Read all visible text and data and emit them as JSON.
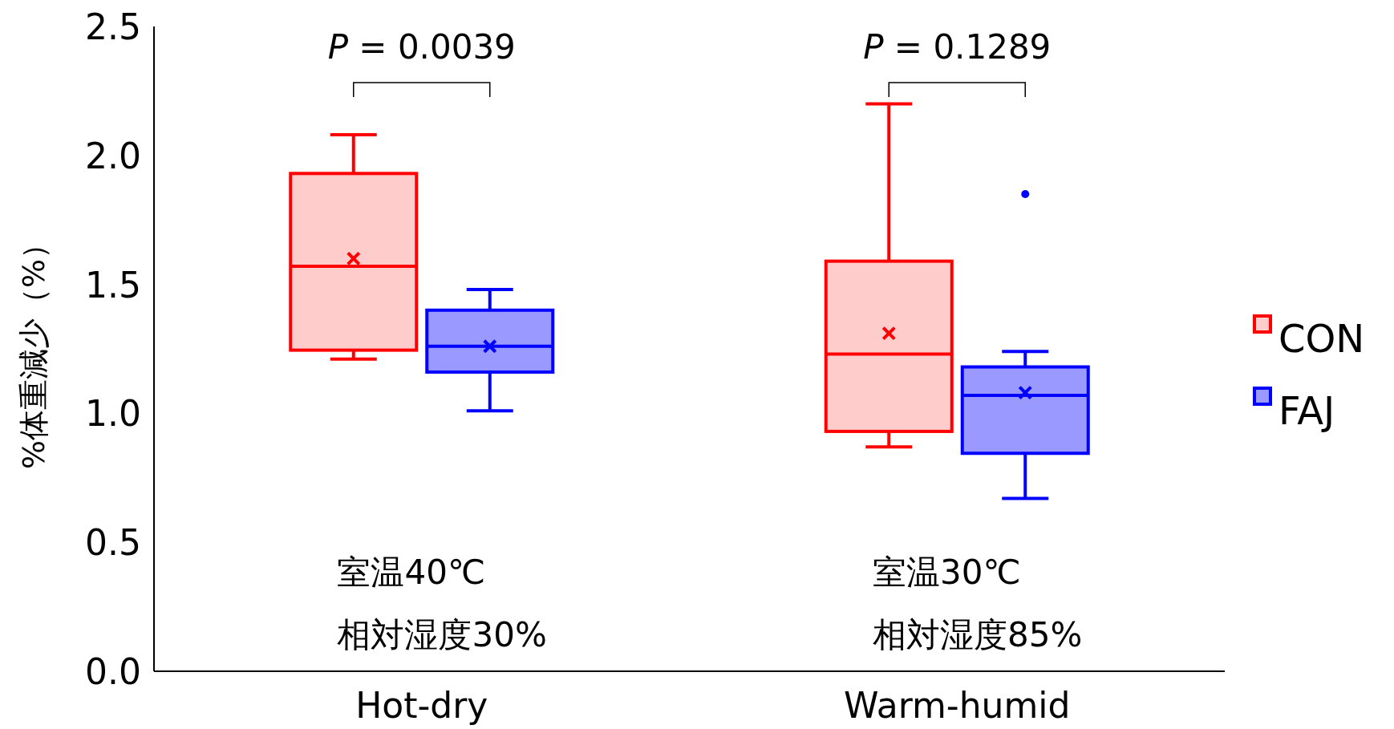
{
  "chart_data": {
    "type": "box",
    "categories": [
      "Hot-dry",
      "Warm-humid"
    ],
    "ylabel": "%体重減少（%）",
    "ylim": [
      0,
      2.5
    ],
    "yticks": [
      {
        "value": 0,
        "label": "0.0"
      },
      {
        "value": 0.5,
        "label": "0.5"
      },
      {
        "value": 1,
        "label": "1.0"
      },
      {
        "value": 1.5,
        "label": "1.5"
      },
      {
        "value": 2,
        "label": "2.0"
      },
      {
        "value": 2.5,
        "label": "2.5"
      }
    ],
    "legend": "right",
    "grid": false,
    "series": [
      {
        "name": "CON",
        "color": "#ff0000",
        "boxes": [
          {
            "low": 1.21,
            "q1": 1.245,
            "median": 1.57,
            "q3": 1.93,
            "high": 2.08,
            "mean": 1.6
          },
          {
            "low": 0.87,
            "q1": 0.93,
            "median": 1.23,
            "q3": 1.59,
            "high": 2.2,
            "mean": 1.31
          }
        ]
      },
      {
        "name": "FAJ",
        "color": "#0000ff",
        "boxes": [
          {
            "low": 1.01,
            "q1": 1.16,
            "median": 1.26,
            "q3": 1.4,
            "high": 1.48,
            "mean": 1.26
          },
          {
            "low": 0.67,
            "q1": 0.845,
            "median": 1.07,
            "q3": 1.18,
            "high": 1.24,
            "mean": 1.08,
            "outliers": [
              1.85
            ]
          }
        ]
      }
    ],
    "annotations": [
      "*P* = 0.0039",
      "*P* = 0.1289",
      "室温40℃",
      "相対湿度30%",
      "室温30℃",
      "相対湿度85%"
    ]
  }
}
